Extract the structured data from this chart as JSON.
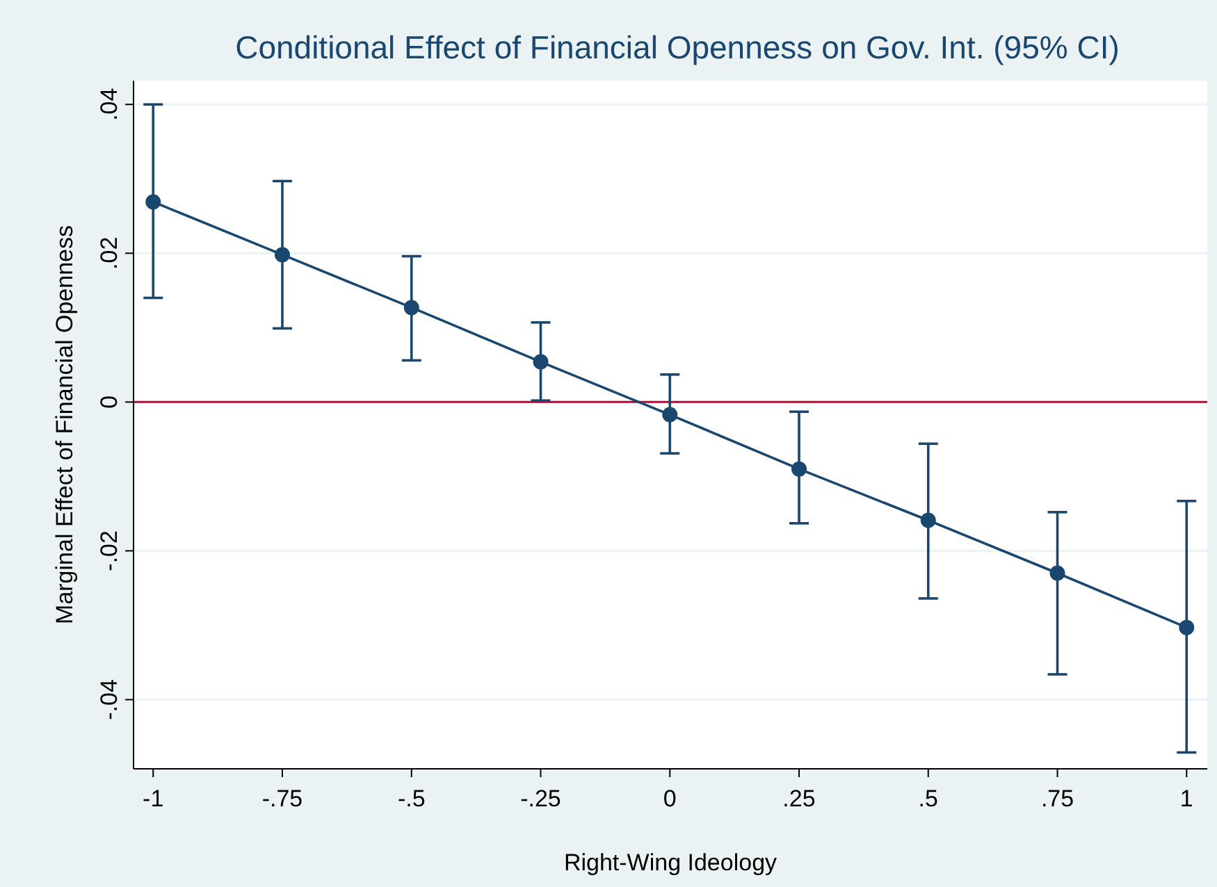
{
  "chart_data": {
    "type": "line",
    "title": "Conditional Effect of Financial Openness on Gov. Int. (95% CI)",
    "xlabel": "Right-Wing Ideology",
    "ylabel": "Marginal Effect of Financial Openness",
    "x": [
      -1,
      -0.75,
      -0.5,
      -0.25,
      0,
      0.25,
      0.5,
      0.75,
      1
    ],
    "series": [
      {
        "color": "#1a476f",
        "values": [
          0.0269,
          0.0198,
          0.0127,
          0.0054,
          -0.0017,
          -0.009,
          -0.0159,
          -0.023,
          -0.0303
        ],
        "errors": [
          [
            0.014,
            0.04
          ],
          [
            0.0099,
            0.0297
          ],
          [
            0.0056,
            0.0196
          ],
          [
            0.0002,
            0.0107
          ],
          [
            -0.0069,
            0.0037
          ],
          [
            -0.0163,
            -0.0013
          ],
          [
            -0.0264,
            -0.0056
          ],
          [
            -0.0366,
            -0.0148
          ],
          [
            -0.0471,
            -0.0133
          ]
        ]
      }
    ],
    "xlim": [
      -1.038,
      1.04
    ],
    "ylim": [
      -0.0493,
      0.0432
    ],
    "xticks": [
      -1,
      {
        "value": -0.75,
        "label": "-.75"
      },
      {
        "value": -0.5,
        "label": "-.5"
      },
      {
        "value": -0.25,
        "label": "-.25"
      },
      0,
      {
        "value": 0.25,
        "label": ".25"
      },
      {
        "value": 0.5,
        "label": ".5"
      },
      {
        "value": 0.75,
        "label": ".75"
      },
      1
    ],
    "yticks": [
      {
        "value": -0.04,
        "label": "-.04"
      },
      {
        "value": -0.02,
        "label": "-.02"
      },
      0,
      {
        "value": 0.02,
        "label": ".02"
      },
      {
        "value": 0.04,
        "label": ".04"
      }
    ],
    "ref_lines": [
      {
        "axis": "y",
        "value": 0,
        "color": "#c10534"
      }
    ],
    "grid": "y",
    "marker": "circle",
    "line_style": "solid"
  }
}
